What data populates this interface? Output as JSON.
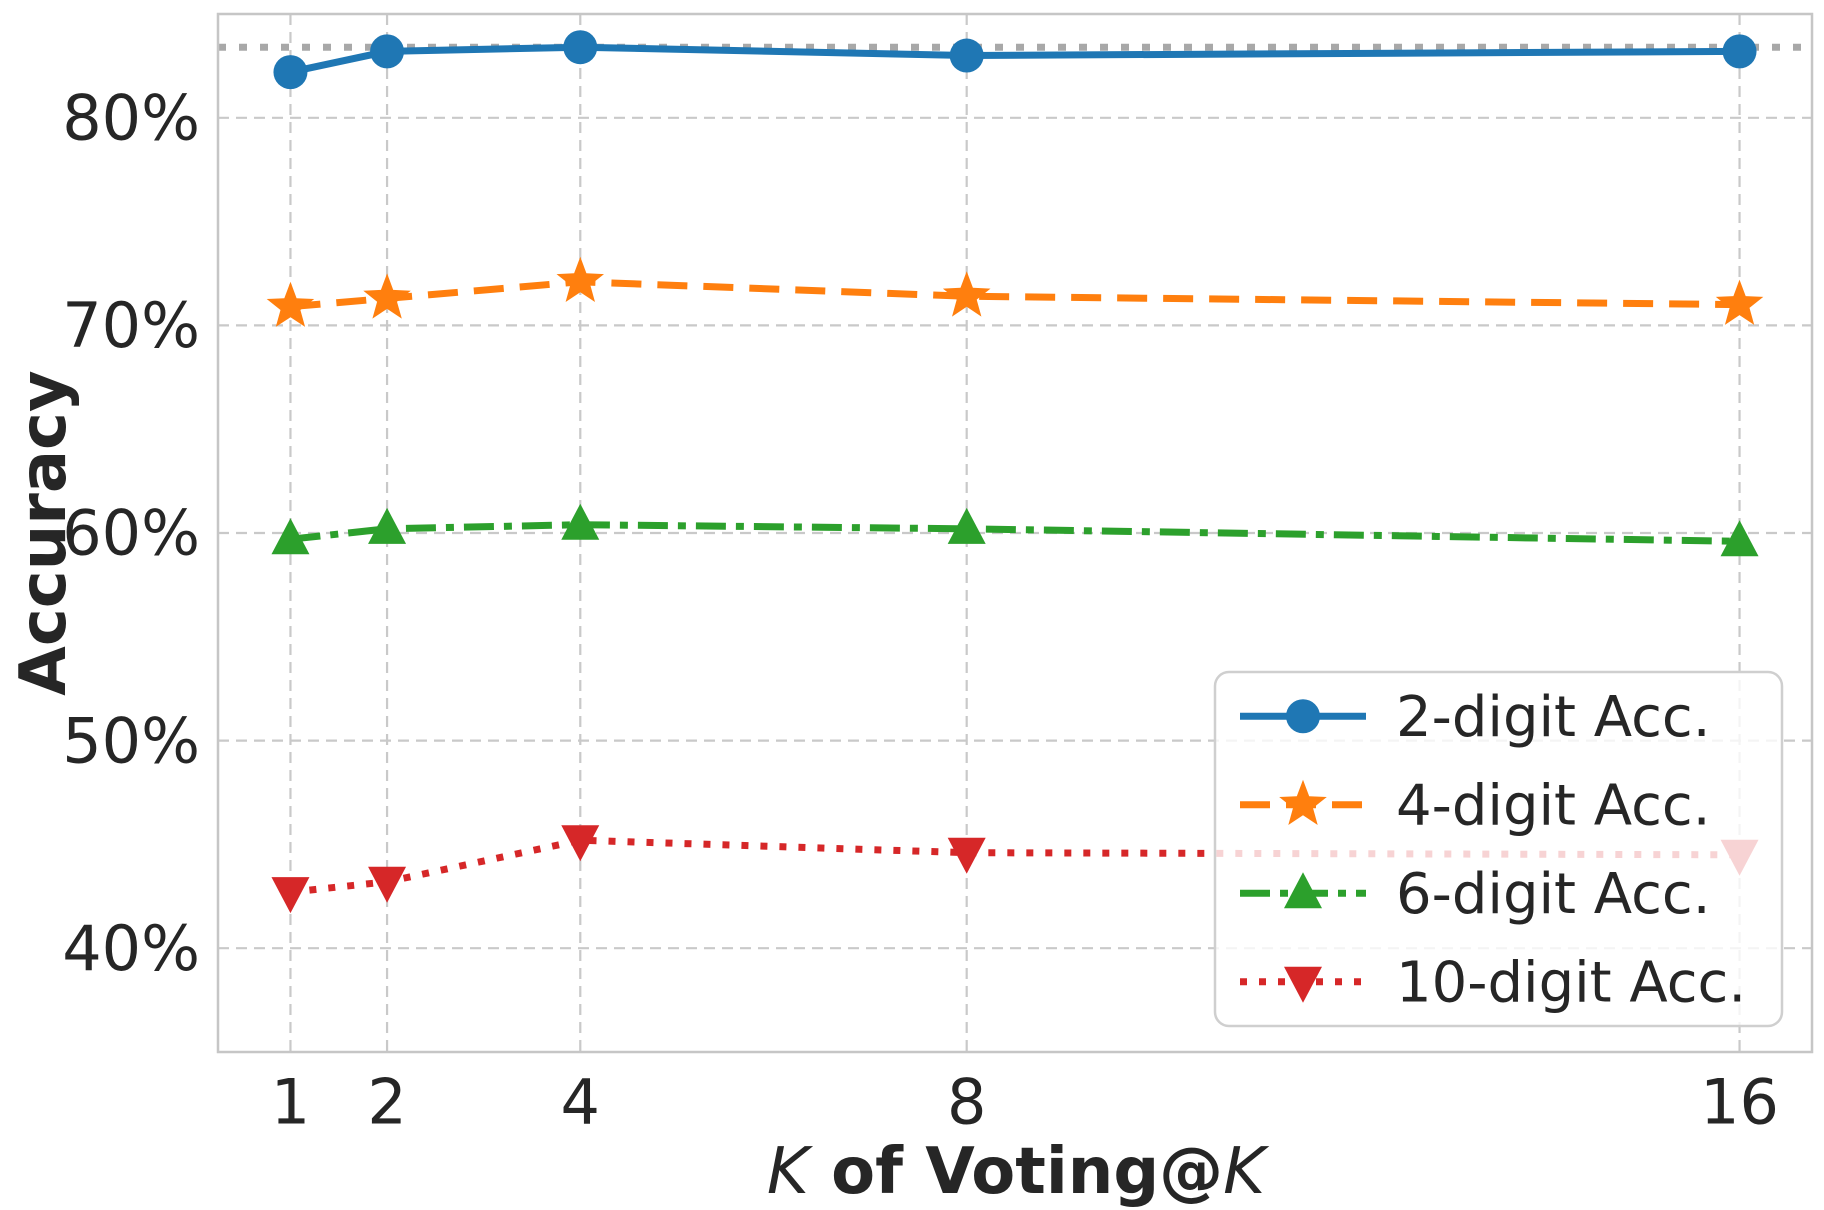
{
  "figure": {
    "background": "#ffffff",
    "text_color": "#262626"
  },
  "chart_data": {
    "type": "line",
    "title": "",
    "xlabel": "K of Voting@K",
    "xlabel_parts": [
      "K",
      " of Voting@",
      "K"
    ],
    "ylabel": "Accuracy",
    "x": [
      1,
      2,
      4,
      8,
      16
    ],
    "xtick_labels": [
      "1",
      "2",
      "4",
      "8",
      "16"
    ],
    "yticks": [
      40,
      50,
      60,
      70,
      80
    ],
    "ytick_labels": [
      "40%",
      "50%",
      "60%",
      "70%",
      "80%"
    ],
    "xlim": [
      0.25,
      16.75
    ],
    "ylim": [
      35,
      85
    ],
    "grid": true,
    "grid_color": "#c9c9c9",
    "spine_color": "#c6c6c6",
    "baseline": {
      "y": 83.4,
      "color": "#a8a8a8",
      "style": "dotted"
    },
    "series": [
      {
        "name": "2-digit Acc.",
        "color": "#1f77b4",
        "style": "solid",
        "marker": "circle",
        "values": [
          82.2,
          83.2,
          83.4,
          83.0,
          83.2
        ]
      },
      {
        "name": "4-digit Acc.",
        "color": "#ff7f0e",
        "style": "dashed",
        "marker": "star",
        "values": [
          70.9,
          71.3,
          72.1,
          71.4,
          71.0
        ]
      },
      {
        "name": "6-digit Acc.",
        "color": "#2ca02c",
        "style": "dashdot",
        "marker": "triangle-up",
        "values": [
          59.7,
          60.2,
          60.4,
          60.2,
          59.6
        ]
      },
      {
        "name": "10-digit Acc.",
        "color": "#d62728",
        "style": "dotted",
        "marker": "triangle-down",
        "values": [
          42.7,
          43.2,
          45.2,
          44.6,
          44.5
        ]
      }
    ],
    "legend": {
      "position": "lower right",
      "opacity": 0.8,
      "labels": [
        "2-digit Acc.",
        "4-digit Acc.",
        "6-digit Acc.",
        "10-digit Acc."
      ]
    }
  }
}
